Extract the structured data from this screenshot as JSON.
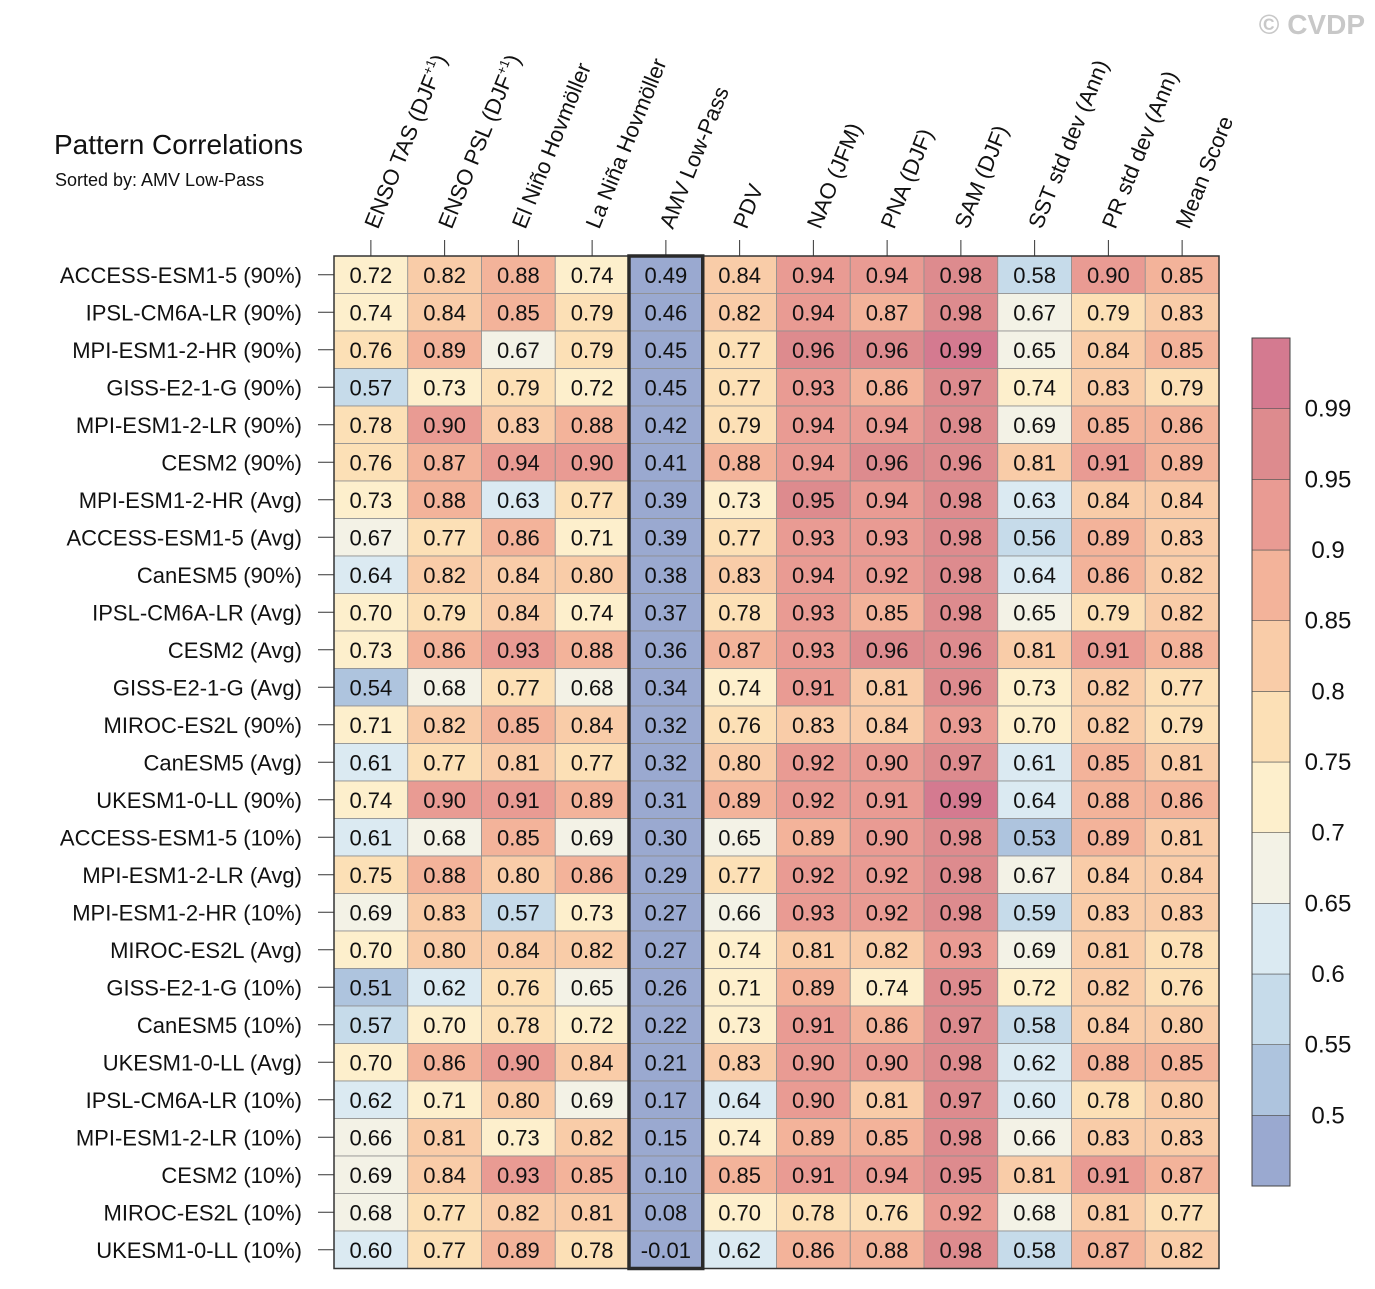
{
  "title": "Pattern Correlations",
  "subtitle": "Sorted by: AMV Low-Pass",
  "copyright": "© CVDP",
  "chart_data": {
    "type": "heatmap",
    "sorted_by": "AMV Low-Pass",
    "columns": [
      {
        "label": "ENSO TAS (DJF",
        "sup": "+1",
        "suffix": ")"
      },
      {
        "label": "ENSO PSL (DJF",
        "sup": "+1",
        "suffix": ")"
      },
      {
        "label": "El Niño Hovmöller",
        "sup": "",
        "suffix": ""
      },
      {
        "label": "La Niña Hovmöller",
        "sup": "",
        "suffix": ""
      },
      {
        "label": "AMV Low-Pass",
        "sup": "",
        "suffix": ""
      },
      {
        "label": "PDV",
        "sup": "",
        "suffix": ""
      },
      {
        "label": "NAO (JFM)",
        "sup": "",
        "suffix": ""
      },
      {
        "label": "PNA (DJF)",
        "sup": "",
        "suffix": ""
      },
      {
        "label": "SAM (DJF)",
        "sup": "",
        "suffix": ""
      },
      {
        "label": "SST std dev (Ann)",
        "sup": "",
        "suffix": ""
      },
      {
        "label": "PR std dev (Ann)",
        "sup": "",
        "suffix": ""
      },
      {
        "label": "Mean Score",
        "sup": "",
        "suffix": ""
      }
    ],
    "highlight_column": 4,
    "rows": [
      {
        "label": "ACCESS-ESM1-5 (90%)",
        "values": [
          "0.72",
          "0.82",
          "0.88",
          "0.74",
          "0.49",
          "0.84",
          "0.94",
          "0.94",
          "0.98",
          "0.58",
          "0.90",
          "0.85"
        ]
      },
      {
        "label": "IPSL-CM6A-LR (90%)",
        "values": [
          "0.74",
          "0.84",
          "0.85",
          "0.79",
          "0.46",
          "0.82",
          "0.94",
          "0.87",
          "0.98",
          "0.67",
          "0.79",
          "0.83"
        ]
      },
      {
        "label": "MPI-ESM1-2-HR (90%)",
        "values": [
          "0.76",
          "0.89",
          "0.67",
          "0.79",
          "0.45",
          "0.77",
          "0.96",
          "0.96",
          "0.99",
          "0.65",
          "0.84",
          "0.85"
        ]
      },
      {
        "label": "GISS-E2-1-G (90%)",
        "values": [
          "0.57",
          "0.73",
          "0.79",
          "0.72",
          "0.45",
          "0.77",
          "0.93",
          "0.86",
          "0.97",
          "0.74",
          "0.83",
          "0.79"
        ]
      },
      {
        "label": "MPI-ESM1-2-LR (90%)",
        "values": [
          "0.78",
          "0.90",
          "0.83",
          "0.88",
          "0.42",
          "0.79",
          "0.94",
          "0.94",
          "0.98",
          "0.69",
          "0.85",
          "0.86"
        ]
      },
      {
        "label": "CESM2 (90%)",
        "values": [
          "0.76",
          "0.87",
          "0.94",
          "0.90",
          "0.41",
          "0.88",
          "0.94",
          "0.96",
          "0.96",
          "0.81",
          "0.91",
          "0.89"
        ]
      },
      {
        "label": "MPI-ESM1-2-HR (Avg)",
        "values": [
          "0.73",
          "0.88",
          "0.63",
          "0.77",
          "0.39",
          "0.73",
          "0.95",
          "0.94",
          "0.98",
          "0.63",
          "0.84",
          "0.84"
        ]
      },
      {
        "label": "ACCESS-ESM1-5 (Avg)",
        "values": [
          "0.67",
          "0.77",
          "0.86",
          "0.71",
          "0.39",
          "0.77",
          "0.93",
          "0.93",
          "0.98",
          "0.56",
          "0.89",
          "0.83"
        ]
      },
      {
        "label": "CanESM5 (90%)",
        "values": [
          "0.64",
          "0.82",
          "0.84",
          "0.80",
          "0.38",
          "0.83",
          "0.94",
          "0.92",
          "0.98",
          "0.64",
          "0.86",
          "0.82"
        ]
      },
      {
        "label": "IPSL-CM6A-LR (Avg)",
        "values": [
          "0.70",
          "0.79",
          "0.84",
          "0.74",
          "0.37",
          "0.78",
          "0.93",
          "0.85",
          "0.98",
          "0.65",
          "0.79",
          "0.82"
        ]
      },
      {
        "label": "CESM2 (Avg)",
        "values": [
          "0.73",
          "0.86",
          "0.93",
          "0.88",
          "0.36",
          "0.87",
          "0.93",
          "0.96",
          "0.96",
          "0.81",
          "0.91",
          "0.88"
        ]
      },
      {
        "label": "GISS-E2-1-G (Avg)",
        "values": [
          "0.54",
          "0.68",
          "0.77",
          "0.68",
          "0.34",
          "0.74",
          "0.91",
          "0.81",
          "0.96",
          "0.73",
          "0.82",
          "0.77"
        ]
      },
      {
        "label": "MIROC-ES2L (90%)",
        "values": [
          "0.71",
          "0.82",
          "0.85",
          "0.84",
          "0.32",
          "0.76",
          "0.83",
          "0.84",
          "0.93",
          "0.70",
          "0.82",
          "0.79"
        ]
      },
      {
        "label": "CanESM5 (Avg)",
        "values": [
          "0.61",
          "0.77",
          "0.81",
          "0.77",
          "0.32",
          "0.80",
          "0.92",
          "0.90",
          "0.97",
          "0.61",
          "0.85",
          "0.81"
        ]
      },
      {
        "label": "UKESM1-0-LL (90%)",
        "values": [
          "0.74",
          "0.90",
          "0.91",
          "0.89",
          "0.31",
          "0.89",
          "0.92",
          "0.91",
          "0.99",
          "0.64",
          "0.88",
          "0.86"
        ]
      },
      {
        "label": "ACCESS-ESM1-5 (10%)",
        "values": [
          "0.61",
          "0.68",
          "0.85",
          "0.69",
          "0.30",
          "0.65",
          "0.89",
          "0.90",
          "0.98",
          "0.53",
          "0.89",
          "0.81"
        ]
      },
      {
        "label": "MPI-ESM1-2-LR (Avg)",
        "values": [
          "0.75",
          "0.88",
          "0.80",
          "0.86",
          "0.29",
          "0.77",
          "0.92",
          "0.92",
          "0.98",
          "0.67",
          "0.84",
          "0.84"
        ]
      },
      {
        "label": "MPI-ESM1-2-HR (10%)",
        "values": [
          "0.69",
          "0.83",
          "0.57",
          "0.73",
          "0.27",
          "0.66",
          "0.93",
          "0.92",
          "0.98",
          "0.59",
          "0.83",
          "0.83"
        ]
      },
      {
        "label": "MIROC-ES2L (Avg)",
        "values": [
          "0.70",
          "0.80",
          "0.84",
          "0.82",
          "0.27",
          "0.74",
          "0.81",
          "0.82",
          "0.93",
          "0.69",
          "0.81",
          "0.78"
        ]
      },
      {
        "label": "GISS-E2-1-G (10%)",
        "values": [
          "0.51",
          "0.62",
          "0.76",
          "0.65",
          "0.26",
          "0.71",
          "0.89",
          "0.74",
          "0.95",
          "0.72",
          "0.82",
          "0.76"
        ]
      },
      {
        "label": "CanESM5 (10%)",
        "values": [
          "0.57",
          "0.70",
          "0.78",
          "0.72",
          "0.22",
          "0.73",
          "0.91",
          "0.86",
          "0.97",
          "0.58",
          "0.84",
          "0.80"
        ]
      },
      {
        "label": "UKESM1-0-LL (Avg)",
        "values": [
          "0.70",
          "0.86",
          "0.90",
          "0.84",
          "0.21",
          "0.83",
          "0.90",
          "0.90",
          "0.98",
          "0.62",
          "0.88",
          "0.85"
        ]
      },
      {
        "label": "IPSL-CM6A-LR (10%)",
        "values": [
          "0.62",
          "0.71",
          "0.80",
          "0.69",
          "0.17",
          "0.64",
          "0.90",
          "0.81",
          "0.97",
          "0.60",
          "0.78",
          "0.80"
        ]
      },
      {
        "label": "MPI-ESM1-2-LR (10%)",
        "values": [
          "0.66",
          "0.81",
          "0.73",
          "0.82",
          "0.15",
          "0.74",
          "0.89",
          "0.85",
          "0.98",
          "0.66",
          "0.83",
          "0.83"
        ]
      },
      {
        "label": "CESM2 (10%)",
        "values": [
          "0.69",
          "0.84",
          "0.93",
          "0.85",
          "0.10",
          "0.85",
          "0.91",
          "0.94",
          "0.95",
          "0.81",
          "0.91",
          "0.87"
        ]
      },
      {
        "label": "MIROC-ES2L (10%)",
        "values": [
          "0.68",
          "0.77",
          "0.82",
          "0.81",
          "0.08",
          "0.70",
          "0.78",
          "0.76",
          "0.92",
          "0.68",
          "0.81",
          "0.77"
        ]
      },
      {
        "label": "UKESM1-0-LL (10%)",
        "values": [
          "0.60",
          "0.77",
          "0.89",
          "0.78",
          "-0.01",
          "0.62",
          "0.86",
          "0.88",
          "0.98",
          "0.58",
          "0.87",
          "0.82"
        ]
      }
    ],
    "colorbar": {
      "thresholds": [
        0.5,
        0.55,
        0.6,
        0.65,
        0.7,
        0.75,
        0.8,
        0.85,
        0.9,
        0.95,
        0.99
      ],
      "tick_labels": [
        "0.5",
        "0.55",
        "0.6",
        "0.65",
        "0.7",
        "0.75",
        "0.8",
        "0.85",
        "0.9",
        "0.95",
        "0.99"
      ],
      "colors": [
        "#9aa9d0",
        "#aec4de",
        "#c6dbea",
        "#dbeaf2",
        "#f3f2e6",
        "#fdefcc",
        "#fce0b6",
        "#f9cca8",
        "#f3b39a",
        "#e99b93",
        "#dd8b8e",
        "#d47a90"
      ]
    }
  }
}
